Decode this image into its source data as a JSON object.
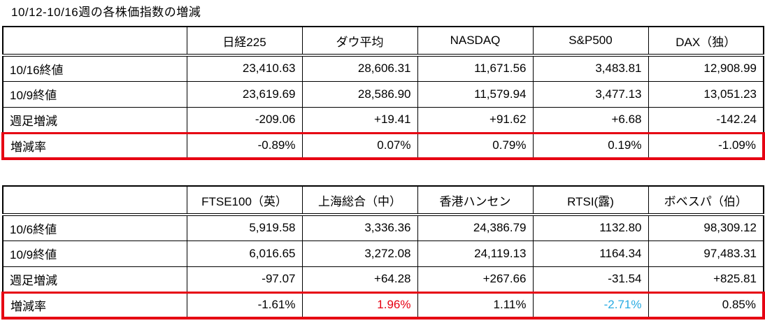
{
  "title": "10/12-10/16週の各株価指数の増減",
  "colors": {
    "accent_red": "#e60012",
    "accent_blue": "#29abe2",
    "grid_line": "#000000",
    "background": "#ffffff",
    "highlight_row_border": "#e60012"
  },
  "table1": {
    "columns": [
      "",
      "日経225",
      "ダウ平均",
      "NASDAQ",
      "S&P500",
      "DAX（独）"
    ],
    "rows": [
      {
        "label": "10/16終値",
        "values": [
          "23,410.63",
          "28,606.31",
          "11,671.56",
          "3,483.81",
          "12,908.99"
        ]
      },
      {
        "label": "10/9終値",
        "values": [
          "23,619.69",
          "28,586.90",
          "11,579.94",
          "3,477.13",
          "13,051.23"
        ]
      },
      {
        "label": "週足増減",
        "values": [
          "-209.06",
          "+19.41",
          "+91.62",
          "+6.68",
          "-142.24"
        ]
      },
      {
        "label": "増減率",
        "values": [
          "-0.89%",
          "0.07%",
          "0.79%",
          "0.19%",
          "-1.09%"
        ]
      }
    ]
  },
  "table2": {
    "columns": [
      "",
      "FTSE100（英）",
      "上海総合（中）",
      "香港ハンセン",
      "RTSI(露)",
      "ボベスパ（伯）"
    ],
    "rows": [
      {
        "label": "10/6終値",
        "values": [
          "5,919.58",
          "3,336.36",
          "24,386.79",
          "1132.80",
          "98,309.12"
        ]
      },
      {
        "label": "10/9終値",
        "values": [
          "6,016.65",
          "3,272.08",
          "24,119.13",
          "1164.34",
          "97,483.31"
        ]
      },
      {
        "label": "週足増減",
        "values": [
          "-97.07",
          "+64.28",
          "+267.66",
          "-31.54",
          "+825.81"
        ]
      },
      {
        "label": "増減率",
        "values": [
          "-1.61%",
          "1.96%",
          "1.11%",
          "-2.71%",
          "0.85%"
        ]
      }
    ]
  }
}
